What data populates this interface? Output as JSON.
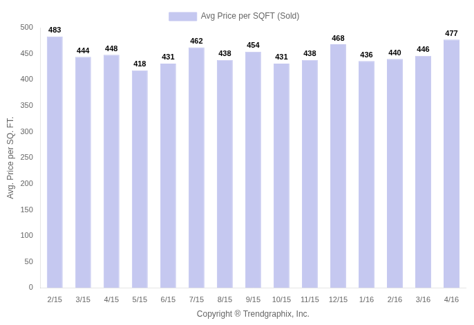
{
  "chart_data": {
    "type": "bar",
    "categories": [
      "2/15",
      "3/15",
      "4/15",
      "5/15",
      "6/15",
      "7/15",
      "8/15",
      "9/15",
      "10/15",
      "11/15",
      "12/15",
      "1/16",
      "2/16",
      "3/16",
      "4/16"
    ],
    "series": [
      {
        "name": "Avg Price per SQFT (Sold)",
        "color": "#c5c8f0",
        "values": [
          483,
          444,
          448,
          418,
          431,
          462,
          438,
          454,
          431,
          438,
          468,
          436,
          440,
          446,
          477
        ]
      }
    ],
    "xlabel": "Copyright ® Trendgraphix, Inc.",
    "ylabel": "Avg. Price per SQ. FT.",
    "ylim": [
      0,
      500
    ],
    "yticks": [
      0,
      50,
      100,
      150,
      200,
      250,
      300,
      350,
      400,
      450,
      500
    ],
    "grid": false,
    "legend": "top",
    "data_labels": true
  }
}
